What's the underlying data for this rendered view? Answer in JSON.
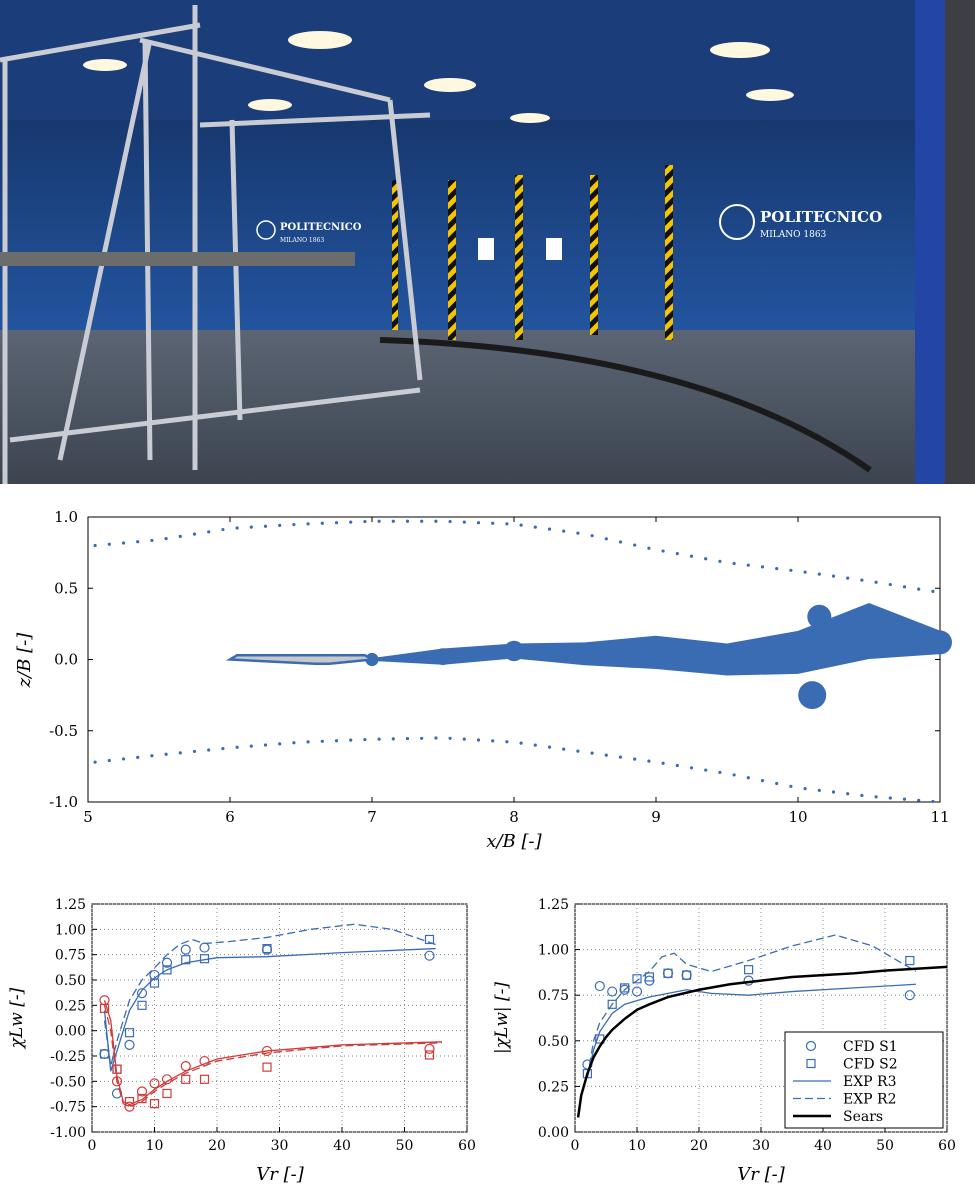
{
  "photo": {
    "logo_left": {
      "name": "POLITECNICO",
      "sub": "MILANO 1863"
    },
    "logo_right": {
      "name": "POLITECNICO",
      "sub": "MILANO 1863"
    },
    "wall_color": "#1f4c96",
    "floor_color": "#4a5563"
  },
  "chart_data": [
    {
      "type": "scatter",
      "xlabel": "x/B [-]",
      "ylabel": "z/B [-]",
      "xlim": [
        5,
        11
      ],
      "ylim": [
        -1,
        1
      ],
      "xticks": [
        "5",
        "6",
        "7",
        "8",
        "9",
        "10",
        "11"
      ],
      "yticks": [
        "1.0",
        "0.5",
        "0.0",
        "-0.5",
        "-1.0"
      ],
      "color": "#3a6cb4",
      "deck": {
        "x": [
          6,
          7
        ],
        "z": [
          0.03,
          -0.03
        ],
        "fill": "#c8c8c8"
      },
      "upper_probes": [
        {
          "x": 5.05,
          "y": 0.8
        },
        {
          "x": 5.5,
          "y": 0.84
        },
        {
          "x": 6.0,
          "y": 0.92
        },
        {
          "x": 6.5,
          "y": 0.95
        },
        {
          "x": 7.0,
          "y": 0.97
        },
        {
          "x": 7.5,
          "y": 0.97
        },
        {
          "x": 8.0,
          "y": 0.95
        },
        {
          "x": 8.5,
          "y": 0.88
        },
        {
          "x": 9.0,
          "y": 0.77
        },
        {
          "x": 9.5,
          "y": 0.68
        },
        {
          "x": 10.0,
          "y": 0.62
        },
        {
          "x": 10.5,
          "y": 0.55
        },
        {
          "x": 11.0,
          "y": 0.47
        }
      ],
      "lower_probes": [
        {
          "x": 5.05,
          "y": -0.72
        },
        {
          "x": 5.5,
          "y": -0.67
        },
        {
          "x": 6.0,
          "y": -0.62
        },
        {
          "x": 6.5,
          "y": -0.58
        },
        {
          "x": 7.0,
          "y": -0.56
        },
        {
          "x": 7.5,
          "y": -0.55
        },
        {
          "x": 8.0,
          "y": -0.58
        },
        {
          "x": 8.5,
          "y": -0.65
        },
        {
          "x": 9.0,
          "y": -0.72
        },
        {
          "x": 9.5,
          "y": -0.8
        },
        {
          "x": 10.0,
          "y": -0.9
        },
        {
          "x": 10.5,
          "y": -0.96
        },
        {
          "x": 11.0,
          "y": -1.0
        }
      ],
      "wake_centerline": [
        {
          "x": 7.0,
          "y": 0.0
        },
        {
          "x": 7.5,
          "y": 0.02
        },
        {
          "x": 8.0,
          "y": 0.06
        },
        {
          "x": 8.5,
          "y": 0.04
        },
        {
          "x": 9.0,
          "y": 0.05
        },
        {
          "x": 9.5,
          "y": 0.0
        },
        {
          "x": 10.0,
          "y": 0.05
        },
        {
          "x": 10.5,
          "y": 0.2
        },
        {
          "x": 11.0,
          "y": 0.12
        }
      ],
      "wake_halfwidth": [
        0.01,
        0.04,
        0.07,
        0.08,
        0.1,
        0.13,
        0.15,
        0.18,
        0.1
      ]
    },
    {
      "type": "line",
      "ylabel": "χLw [-]",
      "xlabel": "Vr [-]",
      "xlim": [
        0,
        60
      ],
      "ylim": [
        -1.0,
        1.25
      ],
      "xticks": [
        "0",
        "10",
        "20",
        "30",
        "40",
        "50",
        "60"
      ],
      "yticks": [
        "1.25",
        "1.00",
        "0.75",
        "0.50",
        "0.25",
        "0.00",
        "-0.25",
        "-0.50",
        "-0.75",
        "-1.00"
      ],
      "grid": true,
      "series": [
        {
          "color": "#3a6cb4",
          "marker": "circle",
          "x": [
            2,
            4,
            6,
            8,
            10,
            12,
            15,
            18,
            28,
            54
          ],
          "y": [
            -0.23,
            -0.62,
            -0.14,
            0.37,
            0.55,
            0.67,
            0.8,
            0.82,
            0.8,
            0.74
          ]
        },
        {
          "color": "#3a6cb4",
          "marker": "square",
          "x": [
            2,
            4,
            6,
            8,
            10,
            12,
            15,
            18,
            28,
            54
          ],
          "y": [
            -0.23,
            -0.38,
            -0.02,
            0.25,
            0.47,
            0.6,
            0.7,
            0.71,
            0.81,
            0.9
          ]
        },
        {
          "color": "#3a6cb4",
          "dash": "none",
          "x": [
            2,
            3,
            4,
            5,
            6,
            8,
            10,
            12,
            15,
            20,
            28,
            40,
            55
          ],
          "y": [
            0.2,
            -0.4,
            -0.2,
            0.0,
            0.2,
            0.4,
            0.52,
            0.6,
            0.67,
            0.72,
            0.73,
            0.77,
            0.81
          ]
        },
        {
          "color": "#3a6cb4",
          "dash": "8,4",
          "x": [
            2,
            3,
            4,
            5,
            6,
            8,
            10,
            12,
            14,
            16,
            18,
            22,
            28,
            35,
            42,
            48,
            55
          ],
          "y": [
            0.1,
            -0.35,
            -0.1,
            0.1,
            0.3,
            0.5,
            0.62,
            0.75,
            0.85,
            0.9,
            0.86,
            0.88,
            0.92,
            1.0,
            1.05,
            1.0,
            0.85
          ]
        },
        {
          "color": "#d23a3a",
          "marker": "circle",
          "x": [
            2,
            4,
            6,
            8,
            10,
            12,
            15,
            18,
            28,
            54
          ],
          "y": [
            0.3,
            -0.5,
            -0.75,
            -0.6,
            -0.52,
            -0.48,
            -0.35,
            -0.3,
            -0.2,
            -0.18
          ]
        },
        {
          "color": "#d23a3a",
          "marker": "square",
          "x": [
            2,
            4,
            6,
            8,
            10,
            12,
            15,
            18,
            28,
            54
          ],
          "y": [
            0.22,
            -0.38,
            -0.7,
            -0.67,
            -0.72,
            -0.62,
            -0.48,
            -0.48,
            -0.36,
            -0.24
          ]
        },
        {
          "color": "#d23a3a",
          "dash": "none",
          "x": [
            2,
            3,
            4,
            5,
            6,
            8,
            10,
            12,
            15,
            20,
            28,
            40,
            56
          ],
          "y": [
            0.3,
            0.1,
            -0.45,
            -0.7,
            -0.73,
            -0.68,
            -0.58,
            -0.5,
            -0.4,
            -0.28,
            -0.2,
            -0.14,
            -0.11
          ]
        },
        {
          "color": "#d23a3a",
          "dash": "8,4",
          "x": [
            2,
            3,
            4,
            5,
            6,
            8,
            10,
            12,
            15,
            20,
            28,
            40,
            56
          ],
          "y": [
            0.25,
            0.0,
            -0.5,
            -0.72,
            -0.75,
            -0.7,
            -0.6,
            -0.52,
            -0.42,
            -0.3,
            -0.22,
            -0.15,
            -0.12
          ]
        }
      ]
    },
    {
      "type": "line",
      "ylabel": "|χLw| [-]",
      "xlabel": "Vr [-]",
      "xlim": [
        0,
        60
      ],
      "ylim": [
        0,
        1.25
      ],
      "xticks": [
        "0",
        "10",
        "20",
        "30",
        "40",
        "50",
        "60"
      ],
      "yticks": [
        "1.25",
        "1.00",
        "0.75",
        "0.50",
        "0.25",
        "0.00"
      ],
      "grid": true,
      "legend_position": "bottom-right",
      "series": [
        {
          "name": "CFD S1",
          "color": "#3a6cb4",
          "marker": "circle",
          "x": [
            2,
            4,
            6,
            8,
            10,
            12,
            15,
            18,
            28,
            54
          ],
          "y": [
            0.37,
            0.8,
            0.77,
            0.78,
            0.77,
            0.83,
            0.87,
            0.86,
            0.83,
            0.75
          ]
        },
        {
          "name": "CFD S2",
          "color": "#3a6cb4",
          "marker": "square",
          "x": [
            2,
            4,
            6,
            8,
            10,
            12,
            15,
            18,
            28,
            54
          ],
          "y": [
            0.32,
            0.51,
            0.7,
            0.79,
            0.84,
            0.85,
            0.87,
            0.86,
            0.89,
            0.94
          ]
        },
        {
          "name": "EXP R3",
          "color": "#3a6cb4",
          "dash": "none",
          "x": [
            2,
            3,
            4,
            5,
            6,
            8,
            10,
            12,
            15,
            18,
            22,
            28,
            35,
            45,
            55
          ],
          "y": [
            0.3,
            0.45,
            0.55,
            0.6,
            0.65,
            0.7,
            0.72,
            0.74,
            0.76,
            0.78,
            0.76,
            0.75,
            0.77,
            0.79,
            0.81
          ]
        },
        {
          "name": "EXP R2",
          "color": "#3a6cb4",
          "dash": "8,4",
          "x": [
            2,
            3,
            4,
            5,
            6,
            8,
            10,
            12,
            14,
            16,
            18,
            22,
            28,
            35,
            42,
            48,
            55
          ],
          "y": [
            0.3,
            0.5,
            0.6,
            0.65,
            0.7,
            0.78,
            0.83,
            0.88,
            0.96,
            0.98,
            0.92,
            0.88,
            0.94,
            1.02,
            1.08,
            1.02,
            0.88
          ]
        },
        {
          "name": "Sears",
          "color": "#000000",
          "dash": "none",
          "width": 2.5,
          "x": [
            0.5,
            1,
            2,
            3,
            4,
            5,
            6,
            8,
            10,
            12,
            15,
            20,
            25,
            30,
            35,
            40,
            45,
            50,
            55,
            60
          ],
          "y": [
            0.08,
            0.2,
            0.32,
            0.41,
            0.47,
            0.52,
            0.56,
            0.62,
            0.67,
            0.7,
            0.74,
            0.78,
            0.81,
            0.83,
            0.85,
            0.86,
            0.87,
            0.885,
            0.895,
            0.905
          ]
        }
      ]
    }
  ]
}
